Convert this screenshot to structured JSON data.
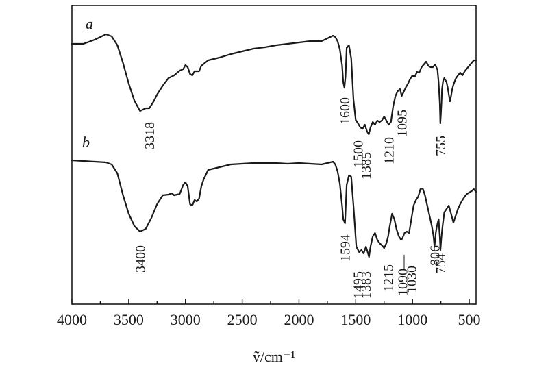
{
  "chart_data": {
    "type": "line",
    "xlabel": "ṽ/cm⁻¹",
    "xlim": [
      4000,
      440
    ],
    "x_ticks": [
      4000,
      3500,
      3000,
      2500,
      2000,
      1500,
      1000,
      500
    ],
    "grid": false,
    "series": [
      {
        "name": "a",
        "x": [
          4000,
          3900,
          3800,
          3700,
          3650,
          3600,
          3550,
          3500,
          3450,
          3400,
          3350,
          3318,
          3280,
          3250,
          3200,
          3150,
          3100,
          3050,
          3020,
          3000,
          2980,
          2960,
          2940,
          2920,
          2900,
          2880,
          2860,
          2800,
          2700,
          2600,
          2500,
          2400,
          2300,
          2200,
          2100,
          2000,
          1900,
          1800,
          1750,
          1700,
          1680,
          1660,
          1640,
          1620,
          1610,
          1600,
          1590,
          1580,
          1560,
          1540,
          1520,
          1500,
          1480,
          1460,
          1440,
          1420,
          1400,
          1385,
          1370,
          1350,
          1330,
          1310,
          1290,
          1270,
          1250,
          1230,
          1210,
          1190,
          1170,
          1150,
          1130,
          1110,
          1095,
          1080,
          1060,
          1040,
          1020,
          1000,
          980,
          960,
          940,
          920,
          900,
          880,
          860,
          840,
          820,
          800,
          780,
          770,
          760,
          755,
          750,
          745,
          740,
          730,
          720,
          700,
          690,
          680,
          670,
          660,
          650,
          640,
          620,
          600,
          580,
          560,
          540,
          520,
          500,
          480,
          460,
          440
        ],
        "y": [
          64,
          64,
          58,
          50,
          53,
          66,
          92,
          122,
          147,
          162,
          158,
          158,
          148,
          138,
          125,
          114,
          110,
          103,
          101,
          95,
          98,
          108,
          110,
          104,
          104,
          104,
          96,
          88,
          84,
          79,
          75,
          71,
          69,
          66,
          64,
          62,
          60,
          60,
          56,
          52,
          54,
          60,
          72,
          95,
          120,
          128,
          112,
          70,
          66,
          85,
          145,
          175,
          180,
          186,
          188,
          182,
          192,
          196,
          186,
          178,
          182,
          176,
          178,
          176,
          170,
          176,
          182,
          178,
          155,
          140,
          133,
          130,
          140,
          135,
          128,
          122,
          115,
          110,
          112,
          105,
          106,
          98,
          94,
          90,
          96,
          98,
          98,
          94,
          102,
          120,
          150,
          180,
          168,
          150,
          130,
          118,
          114,
          120,
          128,
          138,
          148,
          140,
          130,
          124,
          115,
          110,
          106,
          110,
          104,
          100,
          96,
          92,
          88,
          88
        ]
      },
      {
        "name": "b",
        "x": [
          4000,
          3900,
          3800,
          3700,
          3650,
          3600,
          3550,
          3500,
          3450,
          3400,
          3350,
          3300,
          3250,
          3200,
          3150,
          3120,
          3100,
          3050,
          3020,
          3000,
          2980,
          2960,
          2940,
          2920,
          2900,
          2880,
          2860,
          2840,
          2800,
          2700,
          2600,
          2500,
          2400,
          2300,
          2200,
          2100,
          2000,
          1900,
          1800,
          1750,
          1700,
          1680,
          1660,
          1640,
          1620,
          1610,
          1594,
          1580,
          1560,
          1540,
          1520,
          1495,
          1470,
          1450,
          1430,
          1410,
          1395,
          1383,
          1370,
          1350,
          1330,
          1310,
          1290,
          1270,
          1250,
          1230,
          1215,
          1200,
          1180,
          1160,
          1140,
          1120,
          1100,
          1090,
          1070,
          1050,
          1030,
          1010,
          990,
          970,
          950,
          930,
          910,
          890,
          870,
          850,
          830,
          815,
          806,
          795,
          785,
          770,
          760,
          754,
          745,
          735,
          720,
          700,
          680,
          660,
          640,
          620,
          600,
          580,
          560,
          540,
          520,
          500,
          480,
          460,
          440
        ],
        "y": [
          234,
          235,
          236,
          237,
          240,
          253,
          285,
          312,
          330,
          338,
          334,
          318,
          298,
          285,
          284,
          282,
          285,
          283,
          270,
          266,
          272,
          298,
          300,
          292,
          294,
          290,
          272,
          262,
          248,
          244,
          240,
          239,
          238,
          238,
          238,
          239,
          238,
          239,
          240,
          238,
          236,
          240,
          250,
          268,
          300,
          320,
          326,
          270,
          256,
          258,
          300,
          360,
          368,
          365,
          370,
          360,
          368,
          375,
          360,
          345,
          340,
          350,
          355,
          358,
          362,
          355,
          345,
          330,
          312,
          320,
          335,
          345,
          350,
          348,
          340,
          338,
          340,
          320,
          300,
          292,
          287,
          276,
          275,
          285,
          300,
          315,
          330,
          345,
          360,
          340,
          330,
          320,
          345,
          365,
          345,
          330,
          310,
          305,
          300,
          312,
          325,
          315,
          305,
          298,
          292,
          287,
          283,
          281,
          279,
          276,
          280
        ]
      }
    ],
    "series_labels": [
      "a",
      "b"
    ],
    "annotations": {
      "a": [
        "3318",
        "1600",
        "1500",
        "1385",
        "1210",
        "1095",
        "755"
      ],
      "b": [
        "3400",
        "1594",
        "1495",
        "1383",
        "1215",
        "1090—",
        "1030",
        "806",
        "754"
      ]
    }
  }
}
